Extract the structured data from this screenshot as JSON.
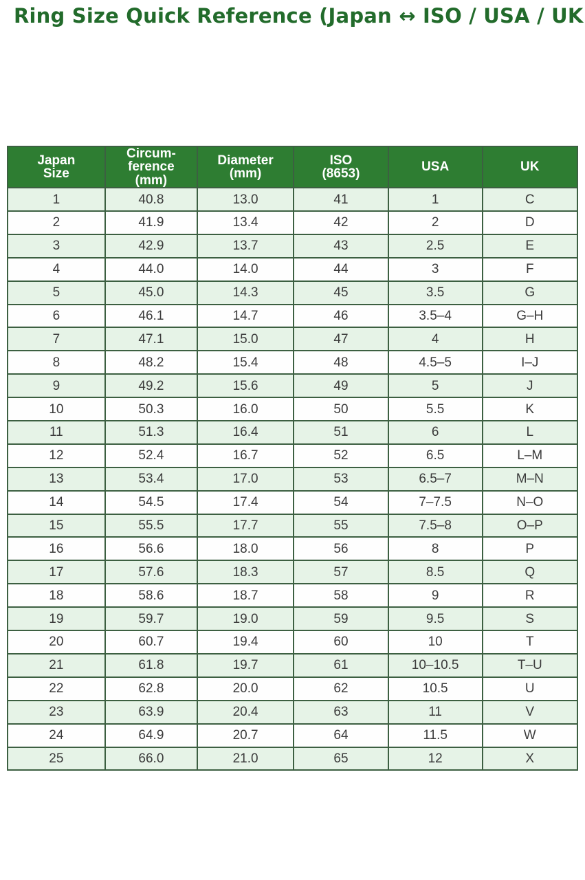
{
  "page": {
    "title": "Ring Size Quick Reference (Japan ↔ ISO / USA / UK)"
  },
  "colors": {
    "title_green": "#226b2b",
    "header_bg": "#2e7d32",
    "header_text": "#ffffff",
    "row_alt_bg": "#e6f3e7",
    "row_bg": "#fefefe",
    "border": "#3c5f41",
    "cell_text": "#3b3b3b"
  },
  "chart_data": {
    "type": "table",
    "title": "Ring Size Quick Reference (Japan ↔ ISO / USA / UK)",
    "columns": [
      {
        "label": "Japan Size",
        "lines": [
          "Japan",
          "Size"
        ]
      },
      {
        "label": "Circumference (mm)",
        "lines": [
          "Circum-",
          "ference",
          "(mm)"
        ]
      },
      {
        "label": "Diameter (mm)",
        "lines": [
          "Diameter",
          "(mm)"
        ]
      },
      {
        "label": "ISO (8653)",
        "lines": [
          "ISO",
          "(8653)"
        ]
      },
      {
        "label": "USA",
        "lines": [
          "USA"
        ]
      },
      {
        "label": "UK",
        "lines": [
          "UK"
        ]
      }
    ],
    "rows": [
      [
        "1",
        "40.8",
        "13.0",
        "41",
        "1",
        "C"
      ],
      [
        "2",
        "41.9",
        "13.4",
        "42",
        "2",
        "D"
      ],
      [
        "3",
        "42.9",
        "13.7",
        "43",
        "2.5",
        "E"
      ],
      [
        "4",
        "44.0",
        "14.0",
        "44",
        "3",
        "F"
      ],
      [
        "5",
        "45.0",
        "14.3",
        "45",
        "3.5",
        "G"
      ],
      [
        "6",
        "46.1",
        "14.7",
        "46",
        "3.5–4",
        "G–H"
      ],
      [
        "7",
        "47.1",
        "15.0",
        "47",
        "4",
        "H"
      ],
      [
        "8",
        "48.2",
        "15.4",
        "48",
        "4.5–5",
        "I–J"
      ],
      [
        "9",
        "49.2",
        "15.6",
        "49",
        "5",
        "J"
      ],
      [
        "10",
        "50.3",
        "16.0",
        "50",
        "5.5",
        "K"
      ],
      [
        "11",
        "51.3",
        "16.4",
        "51",
        "6",
        "L"
      ],
      [
        "12",
        "52.4",
        "16.7",
        "52",
        "6.5",
        "L–M"
      ],
      [
        "13",
        "53.4",
        "17.0",
        "53",
        "6.5–7",
        "M–N"
      ],
      [
        "14",
        "54.5",
        "17.4",
        "54",
        "7–7.5",
        "N–O"
      ],
      [
        "15",
        "55.5",
        "17.7",
        "55",
        "7.5–8",
        "O–P"
      ],
      [
        "16",
        "56.6",
        "18.0",
        "56",
        "8",
        "P"
      ],
      [
        "17",
        "57.6",
        "18.3",
        "57",
        "8.5",
        "Q"
      ],
      [
        "18",
        "58.6",
        "18.7",
        "58",
        "9",
        "R"
      ],
      [
        "19",
        "59.7",
        "19.0",
        "59",
        "9.5",
        "S"
      ],
      [
        "20",
        "60.7",
        "19.4",
        "60",
        "10",
        "T"
      ],
      [
        "21",
        "61.8",
        "19.7",
        "61",
        "10–10.5",
        "T–U"
      ],
      [
        "22",
        "62.8",
        "20.0",
        "62",
        "10.5",
        "U"
      ],
      [
        "23",
        "63.9",
        "20.4",
        "63",
        "11",
        "V"
      ],
      [
        "24",
        "64.9",
        "20.7",
        "64",
        "11.5",
        "W"
      ],
      [
        "25",
        "66.0",
        "21.0",
        "65",
        "12",
        "X"
      ]
    ],
    "layout": {
      "column_width_pct": [
        17.1,
        16.2,
        16.9,
        16.6,
        16.5,
        16.7
      ],
      "alternating_rows": true,
      "header_style": "green-bg-white-text"
    }
  }
}
